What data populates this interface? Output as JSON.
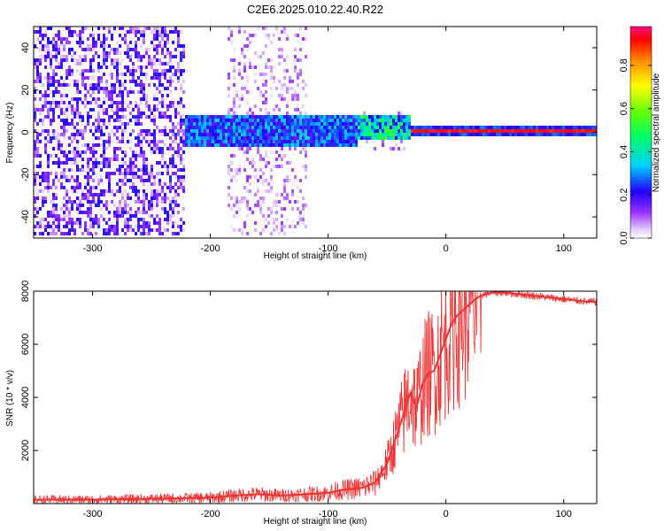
{
  "title": "C2E6.2025.010.22.40.R22",
  "chart_data": [
    {
      "type": "heatmap",
      "xlabel": "Height of straight line (km)",
      "ylabel": "Frequency (Hz)",
      "xlim": [
        -350,
        128
      ],
      "ylim": [
        -50,
        50
      ],
      "xticks": [
        -300,
        -200,
        -100,
        0,
        100
      ],
      "yticks": [
        -40,
        -20,
        0,
        20,
        40
      ],
      "colorbar": {
        "label": "Normalized spectral amplitude",
        "range": [
          0,
          0.98
        ],
        "ticks": [
          "0.0",
          "0.2",
          "0.4",
          "0.6",
          "0.8"
        ],
        "tick_values": [
          0,
          0.2,
          0.4,
          0.6,
          0.8
        ]
      },
      "description_bands": [
        {
          "x_from": -350,
          "x_to": -222,
          "band": "noise",
          "level": 0.18
        },
        {
          "x_from": -222,
          "x_to": -75,
          "band": "spread_signal",
          "center_hz": 0,
          "half_width_hz": 8,
          "level": 0.25
        },
        {
          "x_from": -75,
          "x_to": -30,
          "band": "strengthening",
          "center_hz": 2,
          "half_width_hz": 6,
          "level": 0.45
        },
        {
          "x_from": -30,
          "x_to": 128,
          "band": "carrier",
          "center_hz": 0,
          "half_width_hz": 1,
          "level": 0.95
        }
      ]
    },
    {
      "type": "line",
      "xlabel": "Height of straight line (km)",
      "ylabel": "SNR (10 * v/v)",
      "xlim": [
        -350,
        128
      ],
      "ylim": [
        0,
        8000
      ],
      "xticks": [
        -300,
        -200,
        -100,
        0,
        100
      ],
      "yticks": [
        2000,
        4000,
        6000,
        8000
      ],
      "series": [
        {
          "name": "SNR",
          "color": "#ee3030",
          "x": [
            -350,
            -300,
            -250,
            -200,
            -180,
            -160,
            -140,
            -120,
            -100,
            -90,
            -80,
            -70,
            -60,
            -50,
            -40,
            -35,
            -30,
            -25,
            -20,
            -15,
            -10,
            -5,
            0,
            5,
            10,
            15,
            20,
            25,
            30,
            40,
            50,
            60,
            70,
            80,
            90,
            100,
            110,
            120,
            128
          ],
          "y": [
            150,
            150,
            180,
            220,
            300,
            350,
            300,
            350,
            400,
            500,
            550,
            600,
            800,
            1500,
            2800,
            3500,
            4200,
            3600,
            4500,
            4900,
            5000,
            5600,
            6200,
            6800,
            7100,
            7300,
            7500,
            7700,
            7850,
            7950,
            7950,
            7900,
            7850,
            7800,
            7750,
            7700,
            7650,
            7600,
            7600
          ]
        }
      ]
    }
  ]
}
